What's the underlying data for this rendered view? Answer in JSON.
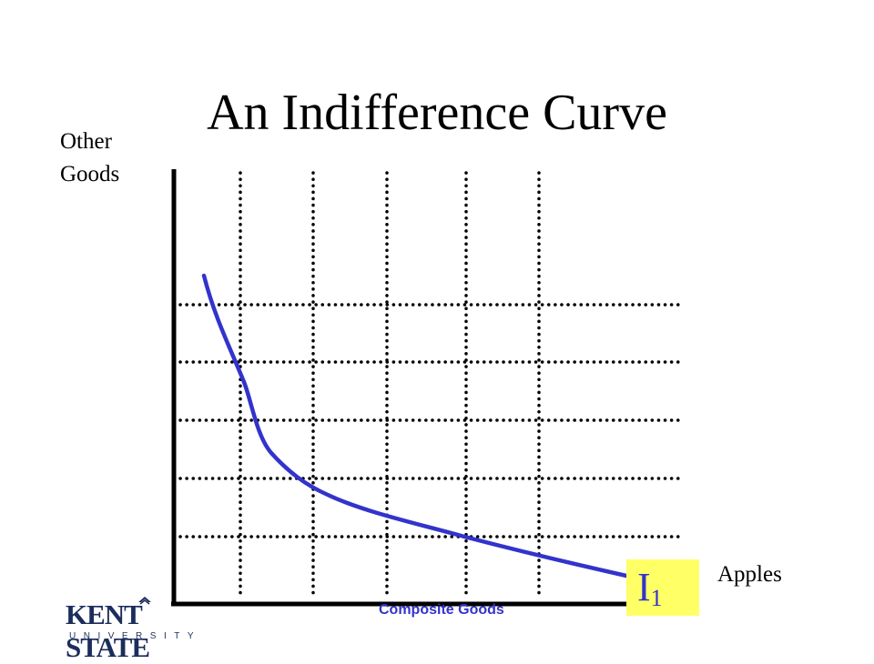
{
  "slide": {
    "title": "An Indifference Curve",
    "footer_caption": "Composite Goods"
  },
  "axes": {
    "y_label_line1": "Other",
    "y_label_line2": "Goods",
    "x_label": "Apples"
  },
  "curve": {
    "name": "I",
    "subscript": "1",
    "color": "#3333cc",
    "label_background": "#ffff66"
  },
  "logo": {
    "wordmark": "KENT STATE",
    "subtitle": "UNIVERSITY",
    "color": "#1b2d5c"
  }
}
